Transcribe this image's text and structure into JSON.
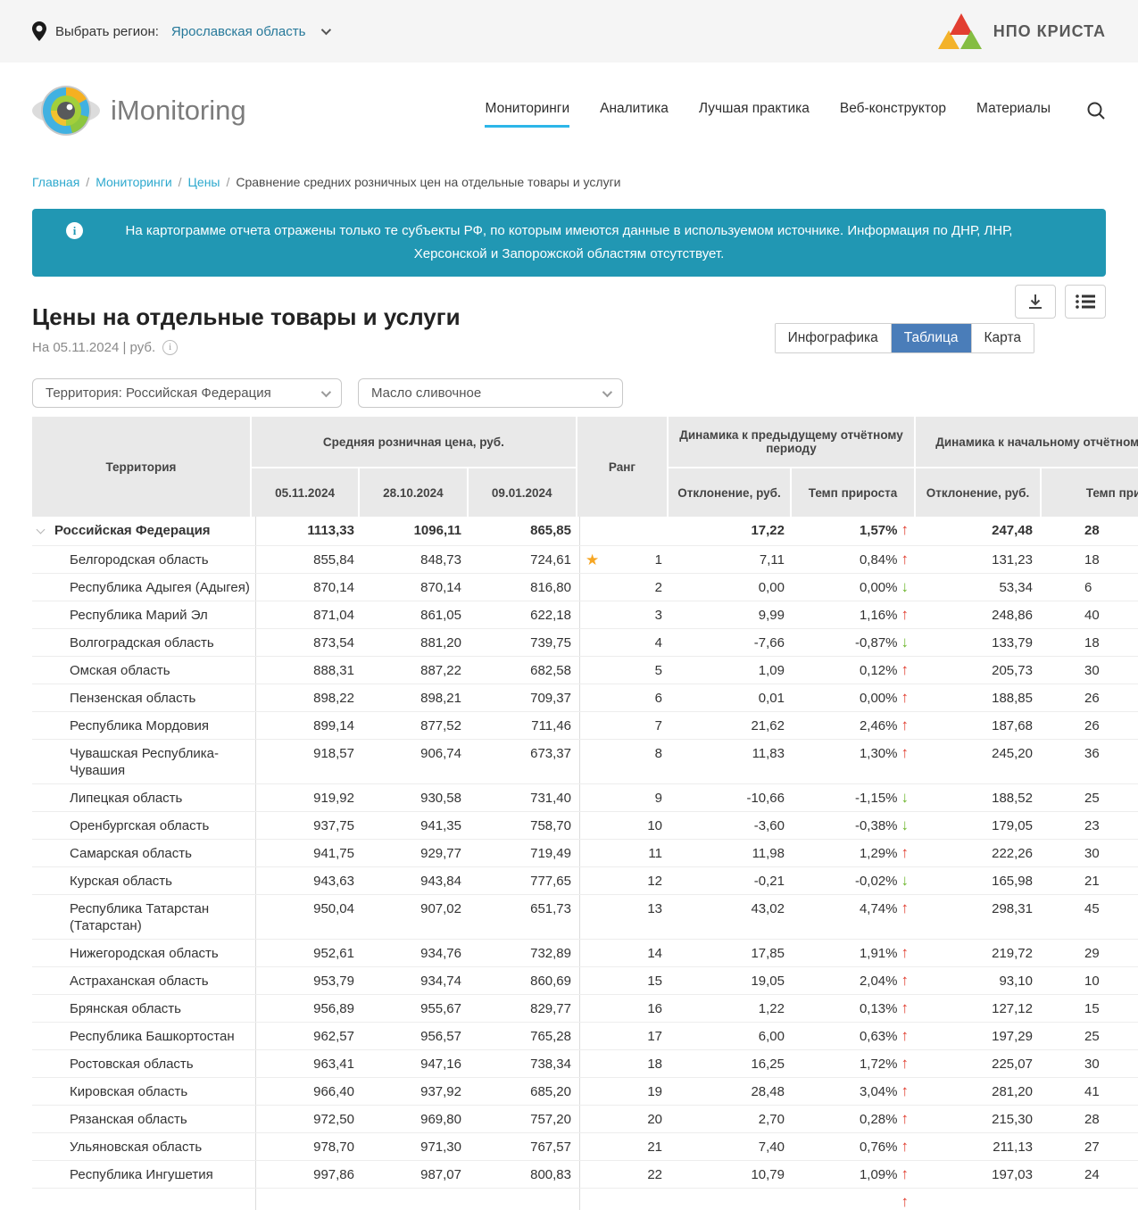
{
  "topbar": {
    "region_label": "Выбрать регион:",
    "region_value": "Ярославская область",
    "brand": "НПО КРИСТА"
  },
  "header": {
    "logo_text": "iMonitoring",
    "nav": [
      {
        "label": "Мониторинги",
        "active": true
      },
      {
        "label": "Аналитика",
        "active": false
      },
      {
        "label": "Лучшая практика",
        "active": false
      },
      {
        "label": "Веб-конструктор",
        "active": false
      },
      {
        "label": "Материалы",
        "active": false
      }
    ]
  },
  "breadcrumb": {
    "links": [
      "Главная",
      "Мониторинги",
      "Цены"
    ],
    "separator": "/",
    "current": "Сравнение средних розничных цен на отдельные товары и услуги"
  },
  "notice": {
    "icon": "info-icon",
    "text": "На картограмме отчета отражены только те субъекты РФ, по которым имеются данные в используемом источнике. Информация по ДНР,  ЛНР,  Херсонской и Запорожской областям отсутствует."
  },
  "page_head": {
    "title": "Цены на отдельные товары и услуги",
    "subtitle": "На 05.11.2024 | руб.",
    "info_icon": "i"
  },
  "view_toggle": {
    "options": [
      "Инфографика",
      "Таблица",
      "Карта"
    ],
    "active": "Таблица"
  },
  "filters": {
    "territory_value": "Территория: Российская  Федерация",
    "product_value": "Масло сливочное"
  },
  "table": {
    "headers": {
      "territory": "Территория",
      "price_group": "Средняя розничная цена, руб.",
      "dates": [
        "05.11.2024",
        "28.10.2024",
        "09.01.2024"
      ],
      "rank": "Ранг",
      "dyn_prev": "Динамика к предыдущему отчётному периоду",
      "deviation_prev": "Отклонение, руб.",
      "rate_prev": "Темп прироста",
      "dyn_start": "Динамика к начальному отчётному периоду",
      "deviation_start": "Отклонение, руб.",
      "rate_start": "Темп прироста"
    },
    "rows": [
      {
        "name": "Российская Федерация",
        "bold": true,
        "caret": true,
        "star": false,
        "rank": "",
        "prices": [
          "1113,33",
          "1096,11",
          "865,85"
        ],
        "dev_prev": "17,22",
        "rate_prev": "1,57%",
        "dir_prev": "up",
        "dev_start": "247,48",
        "rate_start_partial": "28"
      },
      {
        "name": "Белгородская область",
        "bold": false,
        "caret": false,
        "star": true,
        "rank": "1",
        "prices": [
          "855,84",
          "848,73",
          "724,61"
        ],
        "dev_prev": "7,11",
        "rate_prev": "0,84%",
        "dir_prev": "up",
        "dev_start": "131,23",
        "rate_start_partial": "18"
      },
      {
        "name": "Республика Адыгея (Адыгея)",
        "bold": false,
        "caret": false,
        "star": false,
        "rank": "2",
        "prices": [
          "870,14",
          "870,14",
          "816,80"
        ],
        "dev_prev": "0,00",
        "rate_prev": "0,00%",
        "dir_prev": "down",
        "dev_start": "53,34",
        "rate_start_partial": "6"
      },
      {
        "name": "Республика Марий Эл",
        "bold": false,
        "caret": false,
        "star": false,
        "rank": "3",
        "prices": [
          "871,04",
          "861,05",
          "622,18"
        ],
        "dev_prev": "9,99",
        "rate_prev": "1,16%",
        "dir_prev": "up",
        "dev_start": "248,86",
        "rate_start_partial": "40"
      },
      {
        "name": "Волгоградская область",
        "bold": false,
        "caret": false,
        "star": false,
        "rank": "4",
        "prices": [
          "873,54",
          "881,20",
          "739,75"
        ],
        "dev_prev": "-7,66",
        "rate_prev": "-0,87%",
        "dir_prev": "down",
        "dev_start": "133,79",
        "rate_start_partial": "18"
      },
      {
        "name": "Омская область",
        "bold": false,
        "caret": false,
        "star": false,
        "rank": "5",
        "prices": [
          "888,31",
          "887,22",
          "682,58"
        ],
        "dev_prev": "1,09",
        "rate_prev": "0,12%",
        "dir_prev": "up",
        "dev_start": "205,73",
        "rate_start_partial": "30"
      },
      {
        "name": "Пензенская область",
        "bold": false,
        "caret": false,
        "star": false,
        "rank": "6",
        "prices": [
          "898,22",
          "898,21",
          "709,37"
        ],
        "dev_prev": "0,01",
        "rate_prev": "0,00%",
        "dir_prev": "up",
        "dev_start": "188,85",
        "rate_start_partial": "26"
      },
      {
        "name": "Республика Мордовия",
        "bold": false,
        "caret": false,
        "star": false,
        "rank": "7",
        "prices": [
          "899,14",
          "877,52",
          "711,46"
        ],
        "dev_prev": "21,62",
        "rate_prev": "2,46%",
        "dir_prev": "up",
        "dev_start": "187,68",
        "rate_start_partial": "26"
      },
      {
        "name": "Чувашская Республика-Чувашия",
        "bold": false,
        "caret": false,
        "star": false,
        "rank": "8",
        "prices": [
          "918,57",
          "906,74",
          "673,37"
        ],
        "dev_prev": "11,83",
        "rate_prev": "1,30%",
        "dir_prev": "up",
        "dev_start": "245,20",
        "rate_start_partial": "36"
      },
      {
        "name": "Липецкая область",
        "bold": false,
        "caret": false,
        "star": false,
        "rank": "9",
        "prices": [
          "919,92",
          "930,58",
          "731,40"
        ],
        "dev_prev": "-10,66",
        "rate_prev": "-1,15%",
        "dir_prev": "down",
        "dev_start": "188,52",
        "rate_start_partial": "25"
      },
      {
        "name": "Оренбургская область",
        "bold": false,
        "caret": false,
        "star": false,
        "rank": "10",
        "prices": [
          "937,75",
          "941,35",
          "758,70"
        ],
        "dev_prev": "-3,60",
        "rate_prev": "-0,38%",
        "dir_prev": "down",
        "dev_start": "179,05",
        "rate_start_partial": "23"
      },
      {
        "name": "Самарская область",
        "bold": false,
        "caret": false,
        "star": false,
        "rank": "11",
        "prices": [
          "941,75",
          "929,77",
          "719,49"
        ],
        "dev_prev": "11,98",
        "rate_prev": "1,29%",
        "dir_prev": "up",
        "dev_start": "222,26",
        "rate_start_partial": "30"
      },
      {
        "name": "Курская область",
        "bold": false,
        "caret": false,
        "star": false,
        "rank": "12",
        "prices": [
          "943,63",
          "943,84",
          "777,65"
        ],
        "dev_prev": "-0,21",
        "rate_prev": "-0,02%",
        "dir_prev": "down",
        "dev_start": "165,98",
        "rate_start_partial": "21"
      },
      {
        "name": "Республика Татарстан (Татарстан)",
        "bold": false,
        "caret": false,
        "star": false,
        "rank": "13",
        "prices": [
          "950,04",
          "907,02",
          "651,73"
        ],
        "dev_prev": "43,02",
        "rate_prev": "4,74%",
        "dir_prev": "up",
        "dev_start": "298,31",
        "rate_start_partial": "45"
      },
      {
        "name": "Нижегородская область",
        "bold": false,
        "caret": false,
        "star": false,
        "rank": "14",
        "prices": [
          "952,61",
          "934,76",
          "732,89"
        ],
        "dev_prev": "17,85",
        "rate_prev": "1,91%",
        "dir_prev": "up",
        "dev_start": "219,72",
        "rate_start_partial": "29"
      },
      {
        "name": "Астраханская область",
        "bold": false,
        "caret": false,
        "star": false,
        "rank": "15",
        "prices": [
          "953,79",
          "934,74",
          "860,69"
        ],
        "dev_prev": "19,05",
        "rate_prev": "2,04%",
        "dir_prev": "up",
        "dev_start": "93,10",
        "rate_start_partial": "10"
      },
      {
        "name": "Брянская область",
        "bold": false,
        "caret": false,
        "star": false,
        "rank": "16",
        "prices": [
          "956,89",
          "955,67",
          "829,77"
        ],
        "dev_prev": "1,22",
        "rate_prev": "0,13%",
        "dir_prev": "up",
        "dev_start": "127,12",
        "rate_start_partial": "15"
      },
      {
        "name": "Республика Башкортостан",
        "bold": false,
        "caret": false,
        "star": false,
        "rank": "17",
        "prices": [
          "962,57",
          "956,57",
          "765,28"
        ],
        "dev_prev": "6,00",
        "rate_prev": "0,63%",
        "dir_prev": "up",
        "dev_start": "197,29",
        "rate_start_partial": "25"
      },
      {
        "name": "Ростовская область",
        "bold": false,
        "caret": false,
        "star": false,
        "rank": "18",
        "prices": [
          "963,41",
          "947,16",
          "738,34"
        ],
        "dev_prev": "16,25",
        "rate_prev": "1,72%",
        "dir_prev": "up",
        "dev_start": "225,07",
        "rate_start_partial": "30"
      },
      {
        "name": "Кировская область",
        "bold": false,
        "caret": false,
        "star": false,
        "rank": "19",
        "prices": [
          "966,40",
          "937,92",
          "685,20"
        ],
        "dev_prev": "28,48",
        "rate_prev": "3,04%",
        "dir_prev": "up",
        "dev_start": "281,20",
        "rate_start_partial": "41"
      },
      {
        "name": "Рязанская область",
        "bold": false,
        "caret": false,
        "star": false,
        "rank": "20",
        "prices": [
          "972,50",
          "969,80",
          "757,20"
        ],
        "dev_prev": "2,70",
        "rate_prev": "0,28%",
        "dir_prev": "up",
        "dev_start": "215,30",
        "rate_start_partial": "28"
      },
      {
        "name": "Ульяновская область",
        "bold": false,
        "caret": false,
        "star": false,
        "rank": "21",
        "prices": [
          "978,70",
          "971,30",
          "767,57"
        ],
        "dev_prev": "7,40",
        "rate_prev": "0,76%",
        "dir_prev": "up",
        "dev_start": "211,13",
        "rate_start_partial": "27"
      },
      {
        "name": "Республика Ингушетия",
        "bold": false,
        "caret": false,
        "star": false,
        "rank": "22",
        "prices": [
          "997,86",
          "987,07",
          "800,83"
        ],
        "dev_prev": "10,79",
        "rate_prev": "1,09%",
        "dir_prev": "up",
        "dev_start": "197,03",
        "rate_start_partial": "24"
      }
    ],
    "partial_next_row": {
      "dir_prev": "up"
    }
  },
  "colors": {
    "banner_teal": "#2197b3",
    "active_tab_blue": "#4a7db9",
    "link_cyan": "#2ea9ce",
    "nav_underline": "#2cb6e8",
    "arrow_up_red": "#e0392b",
    "arrow_down_green": "#6cb52c",
    "star_orange": "#f6a623",
    "header_gray": "#e9e9e9"
  }
}
